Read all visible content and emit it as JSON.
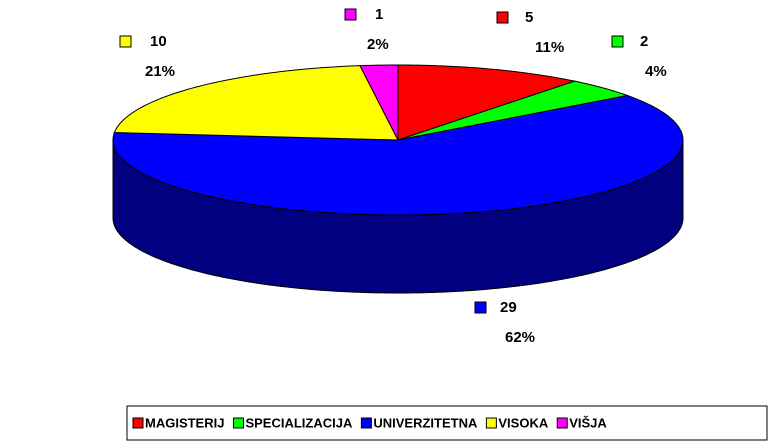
{
  "chart_data": {
    "type": "pie",
    "three_d": true,
    "categories": [
      "MAGISTERIJ",
      "SPECIALIZACIJA",
      "UNIVERZITETNA",
      "VISOKA",
      "VIŠJA"
    ],
    "values": [
      5,
      2,
      29,
      10,
      1
    ],
    "percent_labels": [
      "11%",
      "4%",
      "62%",
      "21%",
      "2%"
    ],
    "colors": [
      "#ff0000",
      "#00ff00",
      "#0000ff",
      "#ffff00",
      "#ff00ff"
    ],
    "side_colors": [
      "#800000",
      "#008000",
      "#000080",
      "#808000",
      "#800080"
    ],
    "legend": "bottom"
  }
}
